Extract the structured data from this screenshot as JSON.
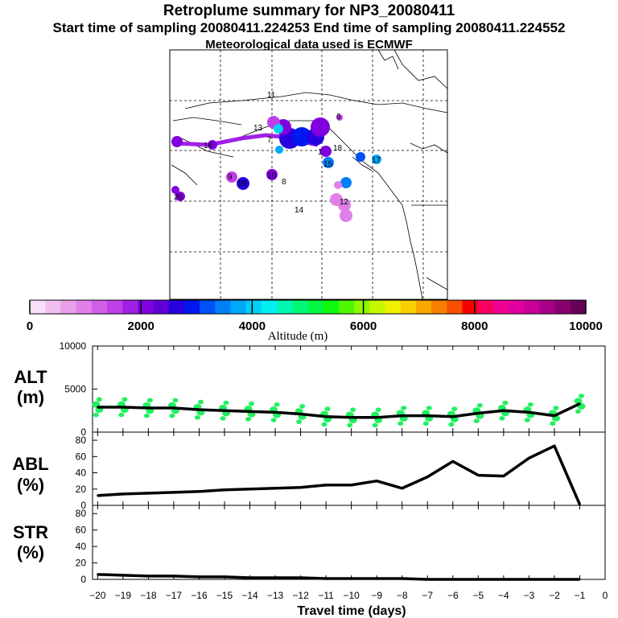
{
  "title": "Retroplume summary for NP3_20080411",
  "subtitle": "Start time of sampling 20080411.224253     End time of sampling 20080411.224552",
  "met_line": "Meteorological data used is ECMWF",
  "colorbar": {
    "label": "Altitude (m)",
    "ticks": [
      "0",
      "2000",
      "4000",
      "6000",
      "8000",
      "10000"
    ],
    "colors": [
      "#f8e0f8",
      "#f0c0f0",
      "#e8a0e8",
      "#e080e8",
      "#d060e8",
      "#c040e8",
      "#a020e8",
      "#8000e0",
      "#6000d8",
      "#2800e0",
      "#0018f0",
      "#0050f8",
      "#0080f8",
      "#00a8f8",
      "#00d0f8",
      "#00f0f0",
      "#00f8b0",
      "#00f878",
      "#00f840",
      "#10f810",
      "#50f800",
      "#90f800",
      "#c8f800",
      "#f0f000",
      "#f8d000",
      "#f8a800",
      "#f88000",
      "#f85000",
      "#f80000",
      "#f80060",
      "#f00090",
      "#e000a0",
      "#c80098",
      "#a80088",
      "#880070",
      "#680058"
    ]
  },
  "map_labels": [
    "11",
    "13",
    "18",
    "12",
    "9",
    "7",
    "14",
    "16",
    "6",
    "10",
    "8",
    "15",
    "17",
    "19",
    "20",
    "1"
  ],
  "chart_data": [
    {
      "type": "line",
      "panel": "ALT",
      "ylabel": [
        "ALT",
        "(m)"
      ],
      "ylim": [
        0,
        10000
      ],
      "yticks": [
        "10000",
        "5000",
        "0"
      ],
      "x": [
        -20,
        -19,
        -18,
        -17,
        -16,
        -15,
        -14,
        -13,
        -12,
        -11,
        -10,
        -9,
        -8,
        -7,
        -6,
        -5,
        -4,
        -3,
        -2,
        -1
      ],
      "values": [
        2900,
        2900,
        2800,
        2800,
        2600,
        2500,
        2400,
        2300,
        2100,
        1800,
        1700,
        1700,
        1900,
        1900,
        1800,
        2200,
        2500,
        2300,
        1900,
        3300
      ]
    },
    {
      "type": "line",
      "panel": "ABL",
      "ylabel": [
        "ABL",
        "(%)"
      ],
      "ylim": [
        0,
        90
      ],
      "yticks": [
        "80",
        "60",
        "40",
        "20",
        "0"
      ],
      "x": [
        -20,
        -19,
        -18,
        -17,
        -16,
        -15,
        -14,
        -13,
        -12,
        -11,
        -10,
        -9,
        -8,
        -7,
        -6,
        -5,
        -4,
        -3,
        -2,
        -1
      ],
      "values": [
        12,
        14,
        15,
        16,
        17,
        19,
        20,
        21,
        22,
        25,
        25,
        30,
        21,
        35,
        54,
        37,
        36,
        58,
        73,
        1
      ]
    },
    {
      "type": "line",
      "panel": "STR",
      "ylabel": [
        "STR",
        "(%)"
      ],
      "ylim": [
        0,
        90
      ],
      "yticks": [
        "80",
        "60",
        "40",
        "20",
        "0"
      ],
      "x": [
        -20,
        -19,
        -18,
        -17,
        -16,
        -15,
        -14,
        -13,
        -12,
        -11,
        -10,
        -9,
        -8,
        -7,
        -6,
        -5,
        -4,
        -3,
        -2,
        -1
      ],
      "values": [
        6,
        5,
        4,
        4,
        3,
        3,
        2,
        2,
        2,
        1,
        1,
        1,
        1,
        0,
        0,
        0,
        0,
        0,
        0,
        0
      ]
    }
  ],
  "xaxis": {
    "label": "Travel time (days)",
    "ticks": [
      "−20",
      "−19",
      "−18",
      "−17",
      "−16",
      "−15",
      "−14",
      "−13",
      "−12",
      "−11",
      "−10",
      "−9",
      "−8",
      "−7",
      "−6",
      "−5",
      "−4",
      "−3",
      "−2",
      "−1",
      "0"
    ],
    "range": [
      -20.2,
      0
    ]
  }
}
